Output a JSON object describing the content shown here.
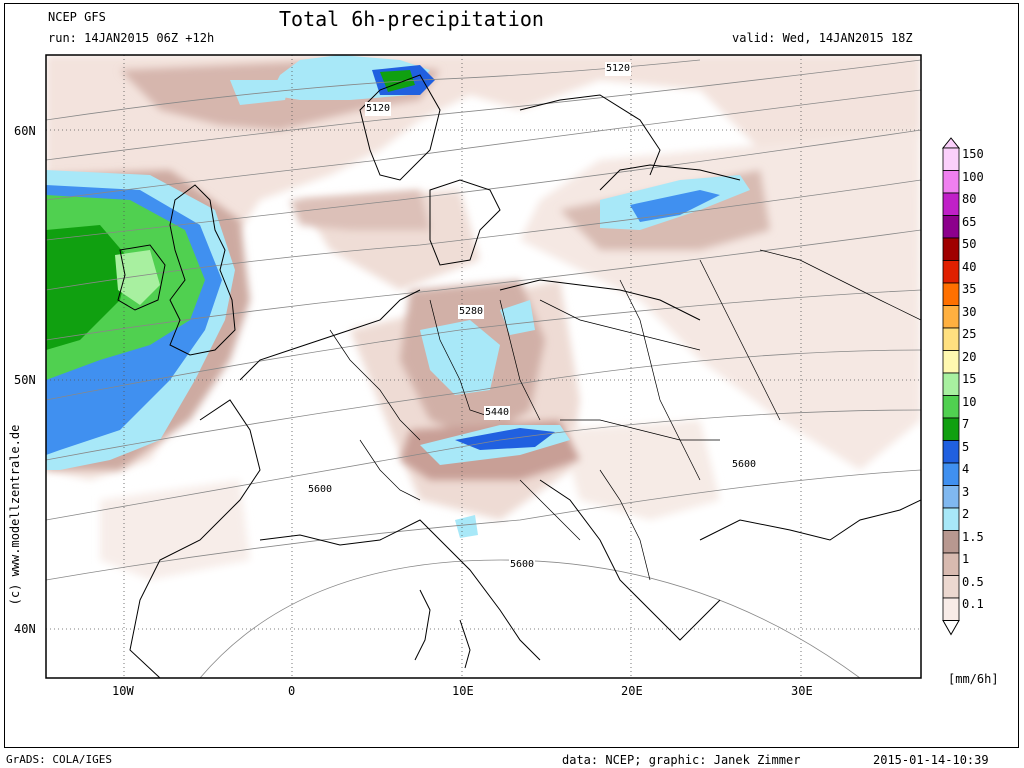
{
  "header": {
    "model": "NCEP GFS",
    "run": "run: 14JAN2015 06Z +12h",
    "title": "Total 6h-precipitation",
    "valid": "valid: Wed, 14JAN2015 18Z"
  },
  "footer": {
    "software": "GrADS: COLA/IGES",
    "credits": "data: NCEP; graphic: Janek Zimmer",
    "timestamp": "2015-01-14-10:39"
  },
  "watermark": "(c) www.modellzentrale.de",
  "axes": {
    "lat_labels": [
      "60N",
      "50N",
      "40N"
    ],
    "lon_labels": [
      "10W",
      "0",
      "10E",
      "20E",
      "30E"
    ]
  },
  "contour_labels": [
    "5120",
    "5120",
    "5280",
    "5440",
    "5600",
    "5600",
    "5600"
  ],
  "legend": {
    "unit": "[mm/6h]",
    "levels": [
      {
        "label": "150",
        "color": "#fbd0fb"
      },
      {
        "label": "100",
        "color": "#f080f0"
      },
      {
        "label": "80",
        "color": "#c020c8"
      },
      {
        "label": "65",
        "color": "#8c008c"
      },
      {
        "label": "50",
        "color": "#a00000"
      },
      {
        "label": "40",
        "color": "#e02000"
      },
      {
        "label": "35",
        "color": "#ff7000"
      },
      {
        "label": "30",
        "color": "#ffb040"
      },
      {
        "label": "25",
        "color": "#ffe080"
      },
      {
        "label": "20",
        "color": "#fff8b0"
      },
      {
        "label": "15",
        "color": "#a8f0a0"
      },
      {
        "label": "10",
        "color": "#50d050"
      },
      {
        "label": "7",
        "color": "#10a010"
      },
      {
        "label": "5",
        "color": "#2060e0"
      },
      {
        "label": "4",
        "color": "#4090f0"
      },
      {
        "label": "3",
        "color": "#80b8f0"
      },
      {
        "label": "2",
        "color": "#a8e8f8"
      },
      {
        "label": "1.5",
        "color": "#b89890"
      },
      {
        "label": "1",
        "color": "#d8bab0"
      },
      {
        "label": "0.5",
        "color": "#ecd8d0"
      },
      {
        "label": "0.1",
        "color": "#f8ece8"
      }
    ]
  }
}
